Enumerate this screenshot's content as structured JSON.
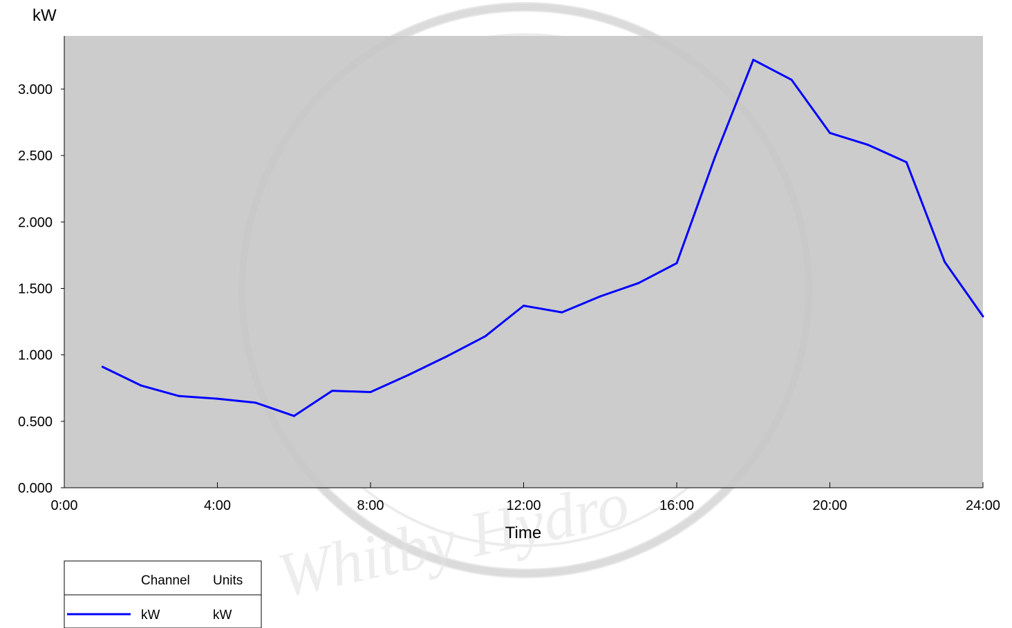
{
  "watermark": {
    "text": "Whitby Hydro"
  },
  "chart_data": {
    "type": "line",
    "title": "",
    "xlabel": "Time",
    "ylabel": "kW",
    "xlim": [
      0,
      24
    ],
    "ylim": [
      0,
      3.4
    ],
    "x_tick_values": [
      0,
      4,
      8,
      12,
      16,
      20,
      24
    ],
    "x_ticks": [
      "0:00",
      "4:00",
      "8:00",
      "12:00",
      "16:00",
      "20:00",
      "24:00"
    ],
    "y_tick_values": [
      0,
      0.5,
      1.0,
      1.5,
      2.0,
      2.5,
      3.0
    ],
    "y_ticks": [
      "0.000",
      "0.500",
      "1.000",
      "1.500",
      "2.000",
      "2.500",
      "3.000"
    ],
    "plot_background": "#cccccc",
    "grid": false,
    "legend_position": "bottom-left",
    "legend": {
      "headers": [
        "Channel",
        "Units"
      ],
      "entries": [
        {
          "channel": "kW",
          "units": "kW",
          "color": "#0000ff"
        }
      ]
    },
    "series": [
      {
        "color": "#0000ff",
        "x": [
          1,
          2,
          3,
          4,
          5,
          6,
          7,
          8,
          9,
          10,
          11,
          12,
          13,
          14,
          15,
          16,
          17,
          18,
          19,
          20,
          21,
          22,
          23,
          24
        ],
        "values": [
          0.91,
          0.77,
          0.69,
          0.67,
          0.64,
          0.54,
          0.73,
          0.72,
          0.85,
          0.99,
          1.14,
          1.37,
          1.32,
          1.44,
          1.54,
          1.69,
          2.49,
          3.22,
          3.07,
          2.67,
          2.58,
          2.45,
          1.7,
          1.29
        ]
      }
    ]
  }
}
